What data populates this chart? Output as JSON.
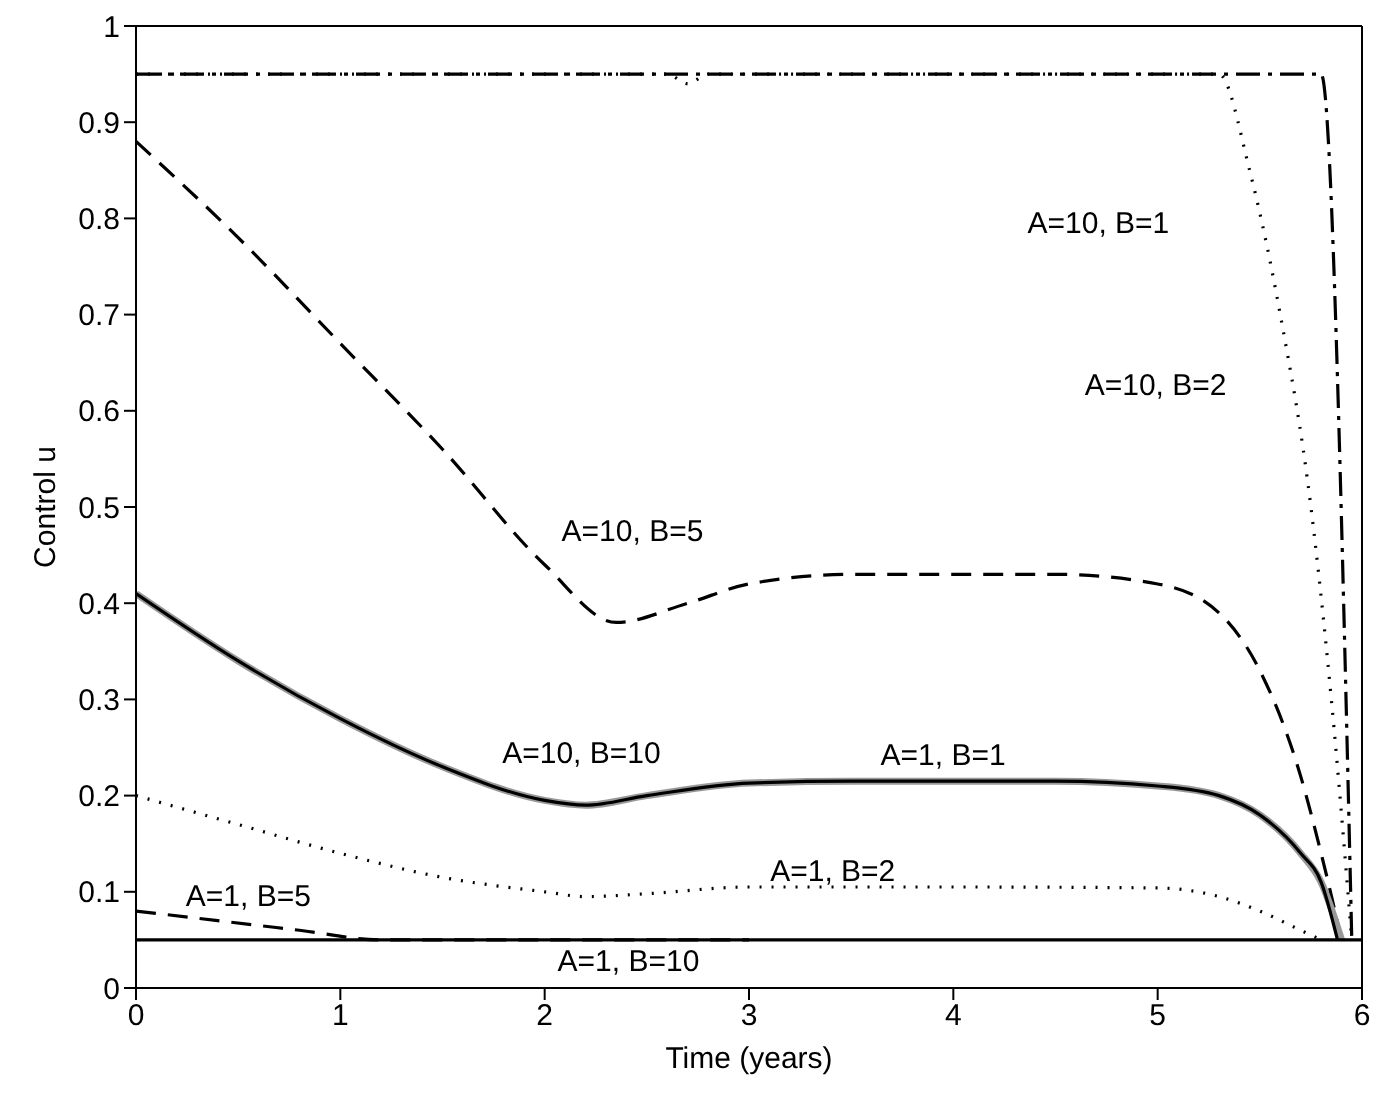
{
  "chart_data": {
    "type": "line",
    "xlabel": "Time (years)",
    "ylabel": "Control u",
    "xlim": [
      0,
      6
    ],
    "ylim": [
      0,
      1
    ],
    "xticks": [
      0,
      1,
      2,
      3,
      4,
      5,
      6
    ],
    "yticks": [
      0,
      0.1,
      0.2,
      0.3,
      0.4,
      0.5,
      0.6,
      0.7,
      0.8,
      0.9,
      1
    ],
    "grid": false,
    "marker": "none",
    "series": [
      {
        "color": "#000000",
        "line_style": "dashdot",
        "x": [
          0,
          1,
          2,
          3,
          4,
          5,
          5.8,
          5.95
        ],
        "values": [
          0.95,
          0.95,
          0.95,
          0.95,
          0.95,
          0.95,
          0.95,
          0.05
        ]
      },
      {
        "color": "#000000",
        "line_style": "dotted",
        "x": [
          0,
          1,
          2,
          2.6,
          2.7,
          2.8,
          3,
          4,
          5,
          5.3,
          5.45,
          5.6,
          5.75,
          5.85,
          5.95
        ],
        "values": [
          0.95,
          0.95,
          0.95,
          0.95,
          0.94,
          0.95,
          0.95,
          0.95,
          0.95,
          0.95,
          0.85,
          0.7,
          0.5,
          0.3,
          0.05
        ]
      },
      {
        "color": "#000000",
        "line_style": "dashed",
        "x": [
          0,
          0.5,
          1,
          1.5,
          2,
          2.35,
          2.7,
          3,
          3.5,
          4,
          4.5,
          5,
          5.3,
          5.5,
          5.7,
          5.8,
          5.9
        ],
        "values": [
          0.88,
          0.78,
          0.67,
          0.56,
          0.44,
          0.38,
          0.4,
          0.42,
          0.43,
          0.43,
          0.43,
          0.42,
          0.39,
          0.33,
          0.22,
          0.14,
          0.05
        ]
      },
      {
        "color": "#999999",
        "line_style": "solid",
        "x": [
          0,
          0.5,
          1,
          1.5,
          2,
          2.2,
          2.5,
          3,
          3.5,
          4,
          4.5,
          5,
          5.3,
          5.5,
          5.7,
          5.8,
          5.9
        ],
        "values": [
          0.41,
          0.34,
          0.28,
          0.23,
          0.195,
          0.19,
          0.2,
          0.213,
          0.215,
          0.215,
          0.215,
          0.21,
          0.2,
          0.18,
          0.14,
          0.11,
          0.05
        ]
      },
      {
        "color": "#000000",
        "line_style": "solid",
        "x": [
          0,
          0.5,
          1,
          1.5,
          2,
          2.2,
          2.5,
          3,
          3.5,
          4,
          4.5,
          5,
          5.3,
          5.5,
          5.7,
          5.8,
          5.88
        ],
        "values": [
          0.41,
          0.34,
          0.28,
          0.23,
          0.195,
          0.19,
          0.2,
          0.213,
          0.215,
          0.215,
          0.215,
          0.21,
          0.2,
          0.18,
          0.14,
          0.11,
          0.05
        ]
      },
      {
        "color": "#000000",
        "line_style": "dotted",
        "x": [
          0,
          0.5,
          1,
          1.5,
          2,
          2.2,
          2.5,
          3,
          4,
          5,
          5.3,
          5.5,
          5.7,
          5.8
        ],
        "values": [
          0.2,
          0.17,
          0.14,
          0.115,
          0.1,
          0.095,
          0.098,
          0.105,
          0.105,
          0.104,
          0.095,
          0.08,
          0.06,
          0.05
        ]
      },
      {
        "color": "#000000",
        "line_style": "dashed",
        "x": [
          0,
          0.4,
          0.8,
          1.2,
          2,
          3
        ],
        "values": [
          0.08,
          0.07,
          0.06,
          0.05,
          0.05,
          0.05
        ]
      },
      {
        "color": "#000000",
        "line_style": "solid",
        "x": [
          0,
          1,
          2,
          3,
          4,
          5,
          6
        ],
        "values": [
          0.05,
          0.05,
          0.05,
          0.05,
          0.05,
          0.05,
          0.05
        ]
      }
    ],
    "annotations": [
      "A=10, B=1",
      "A=10, B=2",
      "A=10, B=5",
      "A=10, B=10",
      "A=1, B=1",
      "A=1, B=2",
      "A=1, B=5",
      "A=1, B=10"
    ]
  }
}
